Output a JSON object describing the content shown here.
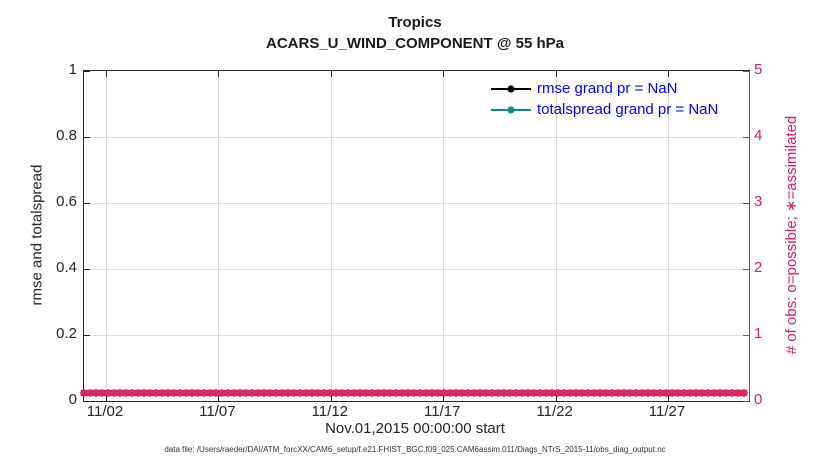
{
  "title": {
    "line1": "Tropics",
    "line2": "ACARS_U_WIND_COMPONENT @ 55 hPa"
  },
  "legend": [
    {
      "label": "rmse grand pr = NaN",
      "marker_color": "#000000"
    },
    {
      "label": "totalspread grand pr = NaN",
      "marker_color": "#0e8a8a"
    }
  ],
  "axes": {
    "left": {
      "label": "rmse and totalspread",
      "ticks": [
        "0",
        "0.2",
        "0.4",
        "0.6",
        "0.8",
        "1"
      ]
    },
    "right": {
      "label": "# of obs: o=possible; ∗=assimilated",
      "ticks": [
        "0",
        "1",
        "2",
        "3",
        "4",
        "5"
      ]
    },
    "x": {
      "label": "Nov.01,2015 00:00:00 start",
      "ticks": [
        "11/02",
        "11/07",
        "11/12",
        "11/17",
        "11/22",
        "11/27"
      ]
    }
  },
  "footer": "data file: /Users/raeder/DAI/ATM_forcXX/CAM6_setup/f.e21.FHIST_BGC.f09_025.CAM6assim.011/Diags_NTrS_2015-11/obs_diag_output.nc",
  "colors": {
    "accent_crimson": "#d5215a",
    "teal": "#0e8a8a",
    "legend_text_blue": "#0000ff",
    "hgrid_pink": "#f8d0dc",
    "vgrid_gray": "#d9d9d9",
    "axis_dark": "#262626"
  },
  "chart_data": {
    "type": "line",
    "title": "Tropics — ACARS_U_WIND_COMPONENT @ 55 hPa",
    "xlabel": "Nov.01,2015 00:00:00 start",
    "ylabel_left": "rmse and totalspread",
    "ylabel_right": "# of obs: o=possible; ∗=assimilated",
    "x_tick_labels": [
      "11/02",
      "11/07",
      "11/12",
      "11/17",
      "11/22",
      "11/27"
    ],
    "x_range": [
      "2015-11-01 00:00",
      "2015-11-30"
    ],
    "ylim_left": [
      0,
      1
    ],
    "ylim_right": [
      0,
      5
    ],
    "grid": true,
    "legend_position": "top-right inside, no box",
    "series": [
      {
        "name": "rmse",
        "legend": "rmse grand pr = NaN",
        "color": "#000000",
        "marker": "filled-circle",
        "values": "NaN — no curve plotted"
      },
      {
        "name": "totalspread",
        "legend": "totalspread grand pr = NaN",
        "color": "#0e8a8a",
        "marker": "filled-circle",
        "values": "NaN — no curve plotted"
      },
      {
        "name": "obs_possible",
        "axis": "right",
        "color": "#d5215a",
        "marker": "o",
        "y_constant": 0,
        "note": "dense band of markers at 0 spanning full month"
      },
      {
        "name": "obs_assimilated",
        "axis": "right",
        "color": "#d5215a",
        "marker": "*",
        "y_constant": 0,
        "note": "dense band of markers at 0 spanning full month"
      }
    ]
  }
}
